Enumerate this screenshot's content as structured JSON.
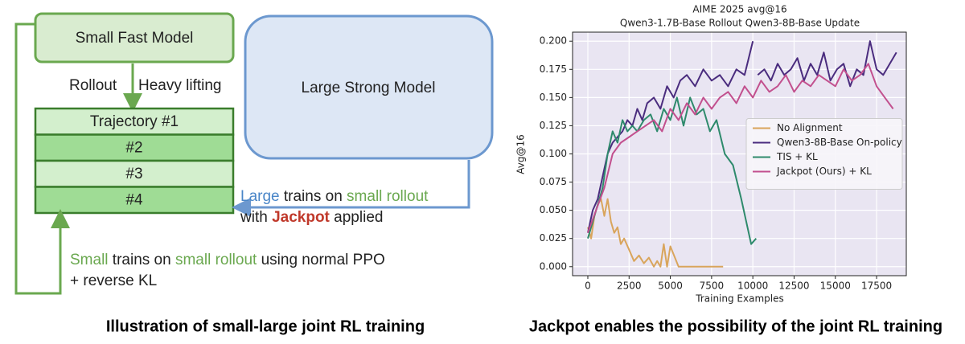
{
  "diagram": {
    "small_model": "Small Fast Model",
    "large_model": "Large Strong Model",
    "rollout": "Rollout",
    "heavy_lifting": "Heavy lifting",
    "trajectories": [
      "Trajectory #1",
      "#2",
      "#3",
      "#4"
    ],
    "large_note": {
      "line1": [
        "Large",
        " trains on ",
        "small rollout"
      ],
      "line2": [
        "with ",
        "Jackpot",
        " applied"
      ]
    },
    "small_note": {
      "line1": [
        "Small",
        " trains on ",
        "small rollout",
        " using normal PPO"
      ],
      "line2": "+ reverse KL"
    }
  },
  "chart_data": {
    "type": "line",
    "title": "AIME 2025 avg@16",
    "subtitle": "Qwen3-1.7B-Base Rollout Qwen3-8B-Base Update",
    "x_label": "Training Examples",
    "y_label": "Avg@16",
    "xlim": [
      -925,
      19300
    ],
    "ylim": [
      -0.008,
      0.208
    ],
    "xticks": [
      0,
      2500,
      5000,
      7500,
      10000,
      12500,
      15000,
      17500
    ],
    "yticks": [
      {
        "value": 0,
        "label": "0.000"
      },
      {
        "value": 0.025,
        "label": "0.025"
      },
      {
        "value": 0.05,
        "label": "0.050"
      },
      {
        "value": 0.075,
        "label": "0.075"
      },
      {
        "value": 0.1,
        "label": "0.100"
      },
      {
        "value": 0.125,
        "label": "0.125"
      },
      {
        "value": 0.15,
        "label": "0.150"
      },
      {
        "value": 0.175,
        "label": "0.175"
      },
      {
        "value": 0.2,
        "label": "0.200"
      }
    ],
    "grid": true,
    "legend": "center right",
    "series": [
      {
        "name": "No Alignment",
        "color": "#d9a55c",
        "x": [
          0,
          200,
          400,
          600,
          800,
          1000,
          1200,
          1400,
          1600,
          1800,
          2000,
          2200,
          2500,
          2800,
          3100,
          3400,
          3700,
          4000,
          4200,
          4400,
          4600,
          4800,
          5000,
          5500,
          6500,
          8200
        ],
        "values": [
          0.035,
          0.025,
          0.045,
          0.055,
          0.06,
          0.045,
          0.06,
          0.04,
          0.03,
          0.035,
          0.02,
          0.025,
          0.015,
          0.005,
          0.01,
          0.003,
          0.008,
          0.0,
          0.005,
          0.0,
          0.02,
          0.0,
          0.018,
          0.0,
          0.0,
          0.0
        ]
      },
      {
        "name": "Qwen3-8B-Base On-policy",
        "color": "#4a2c7e",
        "x": [
          0,
          300,
          600,
          900,
          1200,
          1500,
          1800,
          2100,
          2400,
          2700,
          3000,
          3300,
          3600,
          4000,
          4400,
          4800,
          5200,
          5600,
          6000,
          6500,
          7000,
          7500,
          8000,
          8500,
          9000,
          9500,
          10000,
          10100,
          10300,
          10700,
          11100,
          11500,
          11900,
          12300,
          12700,
          13100,
          13500,
          13900,
          14300,
          14700,
          15100,
          15500,
          15900,
          16300,
          16700,
          17100,
          17500,
          17900,
          18300,
          18700
        ],
        "values": [
          0.03,
          0.05,
          0.06,
          0.08,
          0.1,
          0.11,
          0.115,
          0.12,
          0.13,
          0.125,
          0.14,
          0.13,
          0.145,
          0.15,
          0.14,
          0.16,
          0.15,
          0.165,
          0.17,
          0.16,
          0.175,
          0.165,
          0.17,
          0.16,
          0.175,
          0.17,
          0.2,
          null,
          0.17,
          0.175,
          0.165,
          0.18,
          0.17,
          0.175,
          0.185,
          0.165,
          0.18,
          0.17,
          0.19,
          0.165,
          0.175,
          0.18,
          0.16,
          0.175,
          0.17,
          0.2,
          0.175,
          0.17,
          0.18,
          0.19
        ]
      },
      {
        "name": "TIS + KL",
        "color": "#2e8a6c",
        "x": [
          0,
          300,
          600,
          900,
          1200,
          1500,
          1800,
          2100,
          2400,
          2700,
          3000,
          3400,
          3800,
          4200,
          4600,
          5000,
          5400,
          5800,
          6200,
          6600,
          7000,
          7400,
          7800,
          8300,
          8800,
          9300,
          9900,
          10200
        ],
        "values": [
          0.025,
          0.04,
          0.055,
          0.07,
          0.1,
          0.12,
          0.11,
          0.13,
          0.12,
          0.125,
          0.12,
          0.13,
          0.135,
          0.12,
          0.14,
          0.13,
          0.15,
          0.125,
          0.15,
          0.135,
          0.14,
          0.12,
          0.13,
          0.1,
          0.09,
          0.06,
          0.02,
          0.025
        ]
      },
      {
        "name": "Jackpot (Ours) + KL",
        "color": "#c2508e",
        "x": [
          0,
          500,
          1000,
          1500,
          2000,
          2500,
          3000,
          3500,
          4000,
          4500,
          5000,
          5500,
          6000,
          6500,
          7000,
          7500,
          8000,
          8500,
          9000,
          9500,
          10000,
          10500,
          11000,
          11500,
          12000,
          12500,
          13000,
          13500,
          14000,
          14500,
          15000,
          15500,
          16000,
          16500,
          17000,
          17500,
          18000,
          18500
        ],
        "values": [
          0.03,
          0.05,
          0.07,
          0.1,
          0.11,
          0.115,
          0.12,
          0.125,
          0.13,
          0.12,
          0.14,
          0.13,
          0.145,
          0.135,
          0.15,
          0.14,
          0.15,
          0.155,
          0.145,
          0.16,
          0.15,
          0.165,
          0.155,
          0.16,
          0.17,
          0.155,
          0.165,
          0.16,
          0.17,
          0.165,
          0.16,
          0.175,
          0.165,
          0.17,
          0.18,
          0.16,
          0.15,
          0.14
        ]
      }
    ]
  },
  "captions": [
    "Illustration of small-large joint RL training",
    "Jackpot enables the possibility of the joint RL training"
  ]
}
